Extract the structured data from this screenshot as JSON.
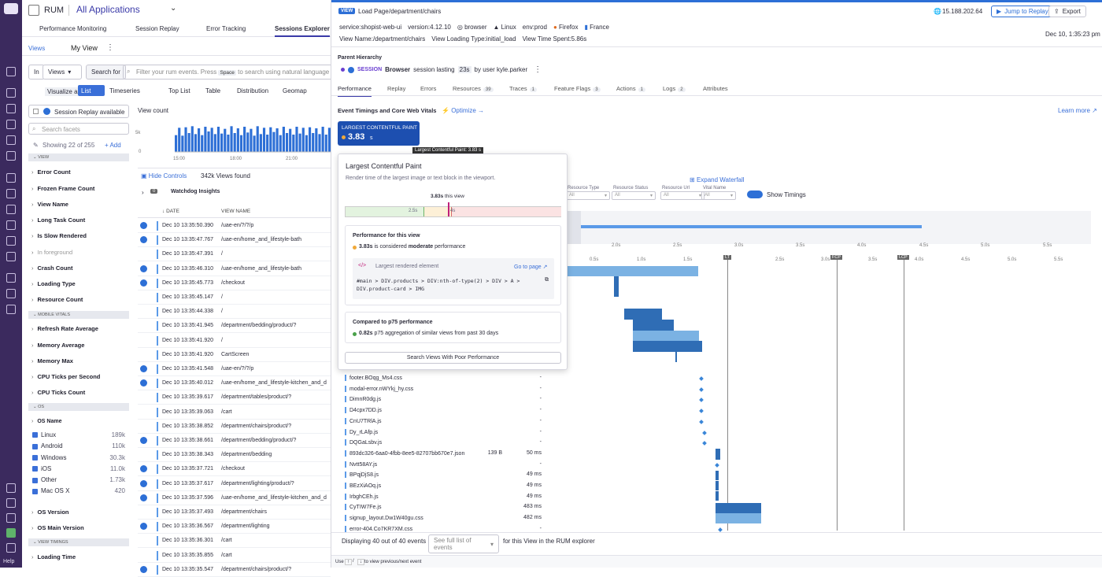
{
  "app": {
    "product": "RUM",
    "app_select": "All Applications"
  },
  "nav_tabs": [
    "Performance Monitoring",
    "Session Replay",
    "Error Tracking",
    "Sessions Explorer"
  ],
  "views_bar": {
    "views": "Views",
    "my_view": "My View"
  },
  "search": {
    "in_label": "In",
    "scope": "Views",
    "search_for": "Search for",
    "placeholder": "Filter your rum events. Press",
    "key_hint": "Space",
    "placeholder_rest": "to search using natural language"
  },
  "visualize": {
    "label": "Visualize as",
    "options": [
      "List",
      "Timeseries",
      "Top List",
      "Table",
      "Distribution",
      "Geomap"
    ]
  },
  "facets_panel": {
    "session_replay": "Session Replay available",
    "search_facets": "Search facets",
    "showing": "Showing 22 of 255",
    "add": "Add"
  },
  "facet_sections": [
    {
      "name": "VIEW",
      "items": [
        "Error Count",
        "Frozen Frame Count",
        "View Name",
        "Long Task Count",
        "Is Slow Rendered",
        "In foreground",
        "Crash Count",
        "Loading Type",
        "Resource Count"
      ]
    },
    {
      "name": "MOBILE VITALS",
      "items": [
        "Refresh Rate Average",
        "Memory Average",
        "Memory Max",
        "CPU Ticks per Second",
        "CPU Ticks Count"
      ]
    },
    {
      "name": "OS",
      "items": [
        "OS Name"
      ]
    }
  ],
  "os_values": [
    {
      "name": "Linux",
      "count": "189k"
    },
    {
      "name": "Android",
      "count": "110k"
    },
    {
      "name": "Windows",
      "count": "30.3k"
    },
    {
      "name": "iOS",
      "count": "11.0k"
    },
    {
      "name": "Other",
      "count": "1.73k"
    },
    {
      "name": "Mac OS X",
      "count": "420"
    }
  ],
  "facets_after": [
    "OS Version",
    "OS Main Version"
  ],
  "view_timings": {
    "section": "VIEW TIMINGS",
    "item": "Loading Time"
  },
  "chart": {
    "title": "View count",
    "y_tick": "5k",
    "y_zero": "0",
    "x_ticks": [
      "15:00",
      "18:00",
      "21:00"
    ]
  },
  "chart_data": {
    "type": "bar",
    "values": [
      3.2,
      4.6,
      3.1,
      4.7,
      3.6,
      4.9,
      3.4,
      4.5,
      3.2,
      4.8,
      3.9,
      4.6,
      3.4,
      4.8,
      3.5,
      4.4,
      3.3,
      4.9,
      3.6,
      4.5,
      3.2,
      4.8,
      3.7,
      4.4,
      3.1,
      4.9,
      3.4,
      4.6,
      3.3,
      4.7,
      3.8,
      4.5,
      3.2,
      4.8,
      3.6,
      4.4,
      3.3,
      4.8,
      3.5,
      4.6,
      3.2,
      4.7,
      3.6,
      4.5,
      3.4,
      4.8,
      3.3,
      4.6
    ],
    "ylim": [
      0,
      6
    ]
  },
  "list": {
    "hide_controls": "Hide Controls",
    "found": "342k Views found",
    "watchdog": "Watchdog Insights",
    "watchdog_count": "0",
    "col_date": "DATE",
    "col_view": "VIEW NAME"
  },
  "rows": [
    {
      "date": "Dec 10 13:35:50.390",
      "view": "/uae-en/?/?/p",
      "replay": true
    },
    {
      "date": "Dec 10 13:35:47.767",
      "view": "/uae-en/home_and_lifestyle-bath",
      "replay": true
    },
    {
      "date": "Dec 10 13:35:47.391",
      "view": "/",
      "replay": false
    },
    {
      "date": "Dec 10 13:35:46.310",
      "view": "/uae-en/home_and_lifestyle-bath",
      "replay": true
    },
    {
      "date": "Dec 10 13:35:45.773",
      "view": "/checkout",
      "replay": true
    },
    {
      "date": "Dec 10 13:35:45.147",
      "view": "/",
      "replay": false
    },
    {
      "date": "Dec 10 13:35:44.338",
      "view": "/",
      "replay": false
    },
    {
      "date": "Dec 10 13:35:41.945",
      "view": "/department/bedding/product/?",
      "replay": false
    },
    {
      "date": "Dec 10 13:35:41.920",
      "view": "/",
      "replay": false
    },
    {
      "date": "Dec 10 13:35:41.920",
      "view": "CartScreen",
      "replay": false
    },
    {
      "date": "Dec 10 13:35:41.548",
      "view": "/uae-en/?/?/p",
      "replay": true
    },
    {
      "date": "Dec 10 13:35:40.012",
      "view": "/uae-en/home_and_lifestyle-kitchen_and_d",
      "replay": true
    },
    {
      "date": "Dec 10 13:35:39.617",
      "view": "/department/tables/product/?",
      "replay": false
    },
    {
      "date": "Dec 10 13:35:39.063",
      "view": "/cart",
      "replay": false
    },
    {
      "date": "Dec 10 13:35:38.852",
      "view": "/department/chairs/product/?",
      "replay": false
    },
    {
      "date": "Dec 10 13:35:38.661",
      "view": "/department/bedding/product/?",
      "replay": true
    },
    {
      "date": "Dec 10 13:35:38.343",
      "view": "/department/bedding",
      "replay": false
    },
    {
      "date": "Dec 10 13:35:37.721",
      "view": "/checkout",
      "replay": true
    },
    {
      "date": "Dec 10 13:35:37.617",
      "view": "/department/lighting/product/?",
      "replay": true
    },
    {
      "date": "Dec 10 13:35:37.596",
      "view": "/uae-en/home_and_lifestyle-kitchen_and_d",
      "replay": true
    },
    {
      "date": "Dec 10 13:35:37.493",
      "view": "/department/chairs",
      "replay": false
    },
    {
      "date": "Dec 10 13:35:36.567",
      "view": "/department/lighting",
      "replay": true
    },
    {
      "date": "Dec 10 13:35:36.301",
      "view": "/cart",
      "replay": false
    },
    {
      "date": "Dec 10 13:35:35.855",
      "view": "/cart",
      "replay": false
    },
    {
      "date": "Dec 10 13:35:35.547",
      "view": "/department/chairs/product/?",
      "replay": true
    }
  ],
  "panel": {
    "badge": "VIEW",
    "load_page": "Load Page",
    "path": "/department/chairs",
    "ip": "15.188.202.64",
    "jump": "Jump to Replay",
    "export": "Export",
    "tags": [
      "service:shopist-web-ui",
      "version:4.12.10",
      "browser",
      "Linux",
      "env:prod",
      "Firefox",
      "France"
    ],
    "meta": [
      "View Name:/department/chairs",
      "View Loading Type:initial_load",
      "View Time Spent:5.86s"
    ],
    "timestamp": "Dec 10, 1:35:23 pm",
    "hierarchy_title": "Parent Hierarchy",
    "session": "SESSION",
    "session_desc_pre": "Browser",
    "session_desc": "session lasting",
    "session_len": "23s",
    "session_user": "by user kyle.parker",
    "tabs": [
      {
        "label": "Performance",
        "count": ""
      },
      {
        "label": "Replay",
        "count": ""
      },
      {
        "label": "Errors",
        "count": ""
      },
      {
        "label": "Resources",
        "count": "39"
      },
      {
        "label": "Traces",
        "count": "1"
      },
      {
        "label": "Feature Flags",
        "count": "3"
      },
      {
        "label": "Actions",
        "count": "1"
      },
      {
        "label": "Logs",
        "count": "2"
      },
      {
        "label": "Attributes",
        "count": ""
      }
    ],
    "timings_title": "Event Timings and Core Web Vitals",
    "optimize": "Optimize",
    "learn_more": "Learn more",
    "lcp_label": "LARGEST CONTENTFUL PAINT",
    "lcp_value": "3.83",
    "lcp_unit": "s",
    "lcp_tooltip": "Largest Contentful Paint: 3.83 s",
    "expand": "Expand Waterfall",
    "filters": [
      {
        "label": "Resource Type",
        "value": "All"
      },
      {
        "label": "Resource Status",
        "value": "All"
      },
      {
        "label": "Resource Url",
        "value": "All"
      },
      {
        "label": "Vital Name",
        "value": "All"
      }
    ],
    "show_timings": "Show Timings",
    "axis_top": [
      "2.0s",
      "2.5s",
      "3.0s",
      "3.5s",
      "4.0s",
      "4.5s",
      "5.0s",
      "5.5s"
    ],
    "axis_bottom": [
      "0.5s",
      "1.0s",
      "1.5s",
      "2.5s",
      "3.0s",
      "3.5s",
      "4.0s",
      "4.5s",
      "5.0s",
      "5.5s"
    ],
    "markers": [
      "LT",
      "FCP",
      "LCP"
    ]
  },
  "popover": {
    "title": "Largest Contentful Paint",
    "desc": "Render time of the largest image or text block in the viewport.",
    "this_view_val": "3.83s",
    "this_view": "this view",
    "scale": [
      "2.5s",
      "4s"
    ],
    "perf_title": "Performance for this view",
    "perf_val": "3.83s",
    "perf_mid": "is considered",
    "perf_grade": "moderate",
    "perf_end": "performance",
    "element_title": "Largest rendered element",
    "goto": "Go to page",
    "selector": "#main > DIV.products > DIV:nth-of-type(2) > DIV > A > DIV.product-card > IMG",
    "compare_title": "Compared to p75 performance",
    "compare_val": "0.82s",
    "compare_text": "p75 aggregation of similar views from past 30 days",
    "search_btn": "Search Views With Poor Performance"
  },
  "resources": [
    {
      "name": "footer.BOqg_Ms4.css",
      "size": "",
      "dur": "-"
    },
    {
      "name": "modal-error.nWYkj_hy.css",
      "size": "",
      "dur": "-"
    },
    {
      "name": "DimnR0dg.js",
      "size": "",
      "dur": "-"
    },
    {
      "name": "D4cpx7DD.js",
      "size": "",
      "dur": "-"
    },
    {
      "name": "CnU7TRlA.js",
      "size": "",
      "dur": "-"
    },
    {
      "name": "Dy_rLAfp.js",
      "size": "",
      "dur": "-"
    },
    {
      "name": "DQGaLsbv.js",
      "size": "",
      "dur": "-"
    },
    {
      "name": "893dc326-6aa0-4fbb-8ee5-82707bb670e7.json",
      "size": "139 B",
      "dur": "50 ms"
    },
    {
      "name": "Nvtt58AY.js",
      "size": "",
      "dur": "-"
    },
    {
      "name": "BPqjDjS8.js",
      "size": "",
      "dur": "49 ms"
    },
    {
      "name": "BEzXiAOq.js",
      "size": "",
      "dur": "49 ms"
    },
    {
      "name": "IrbghCEh.js",
      "size": "",
      "dur": "49 ms"
    },
    {
      "name": "CyTIW7Fe.js",
      "size": "",
      "dur": "483 ms"
    },
    {
      "name": "signup_layout.Dw1W40gu.css",
      "size": "",
      "dur": "482 ms"
    },
    {
      "name": "error-404.Co7KR7XM.css",
      "size": "",
      "dur": "-"
    }
  ],
  "footer": {
    "displaying": "Displaying 40 out of 40 events",
    "see_full": "See full list of events",
    "explorer": "for this View in the RUM explorer",
    "hint_use": "Use",
    "hint_rest": "to view previous/next event"
  }
}
